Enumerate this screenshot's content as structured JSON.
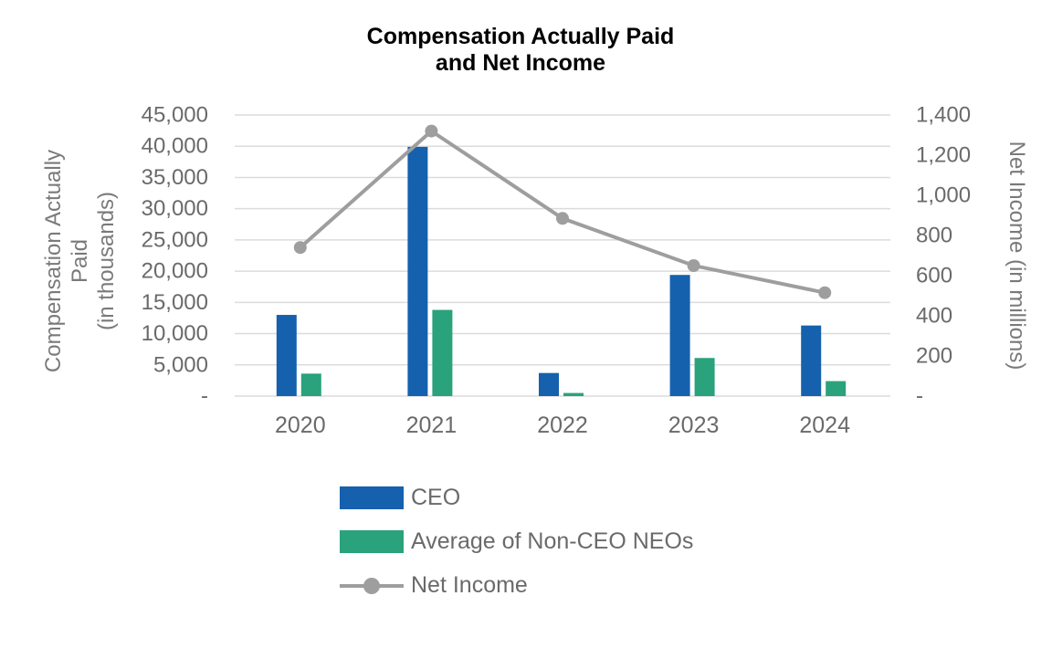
{
  "title_lines": [
    "Compensation Actually Paid",
    "and Net Income"
  ],
  "colors": {
    "ceo_blue": "#1561AE",
    "neo_green": "#2AA27C",
    "line_gray": "#9E9E9E",
    "grid": "#DCDCDC",
    "tick_text": "#6A6A6A",
    "title_text": "#000000",
    "background": "#FFFFFF"
  },
  "legend": [
    {
      "type": "bar",
      "label": "CEO",
      "color": "#1561AE"
    },
    {
      "type": "bar",
      "label": "Average of Non-CEO NEOs",
      "color": "#2AA27C"
    },
    {
      "type": "line",
      "label": "Net Income",
      "color": "#9E9E9E"
    }
  ],
  "chart_data": {
    "type": "combo-bar-line",
    "title": "Compensation Actually Paid and Net Income",
    "categories": [
      "2020",
      "2021",
      "2022",
      "2023",
      "2024"
    ],
    "series": [
      {
        "name": "CEO",
        "type": "bar",
        "axis": "left",
        "color": "#1561AE",
        "values": [
          13000,
          39900,
          3700,
          19400,
          11300
        ]
      },
      {
        "name": "Average of Non-CEO NEOs",
        "type": "bar",
        "axis": "left",
        "color": "#2AA27C",
        "values": [
          3600,
          13800,
          500,
          6100,
          2400
        ]
      },
      {
        "name": "Net Income",
        "type": "line",
        "axis": "right",
        "color": "#9E9E9E",
        "values": [
          740,
          1320,
          885,
          650,
          515
        ]
      }
    ],
    "left_axis": {
      "title_lines": [
        "Compensation Actually",
        "Paid",
        "(in thousands)"
      ],
      "min": 0,
      "max": 45000,
      "step": 5000,
      "tick_labels": [
        "-",
        "5,000",
        "10,000",
        "15,000",
        "20,000",
        "25,000",
        "30,000",
        "35,000",
        "40,000",
        "45,000"
      ]
    },
    "right_axis": {
      "title": "Net Income (in millions)",
      "min": 0,
      "max": 1400,
      "step": 200,
      "tick_labels": [
        "-",
        "200",
        "400",
        "600",
        "800",
        "1,000",
        "1,200",
        "1,400"
      ]
    },
    "grid": true,
    "legend_position": "bottom"
  }
}
